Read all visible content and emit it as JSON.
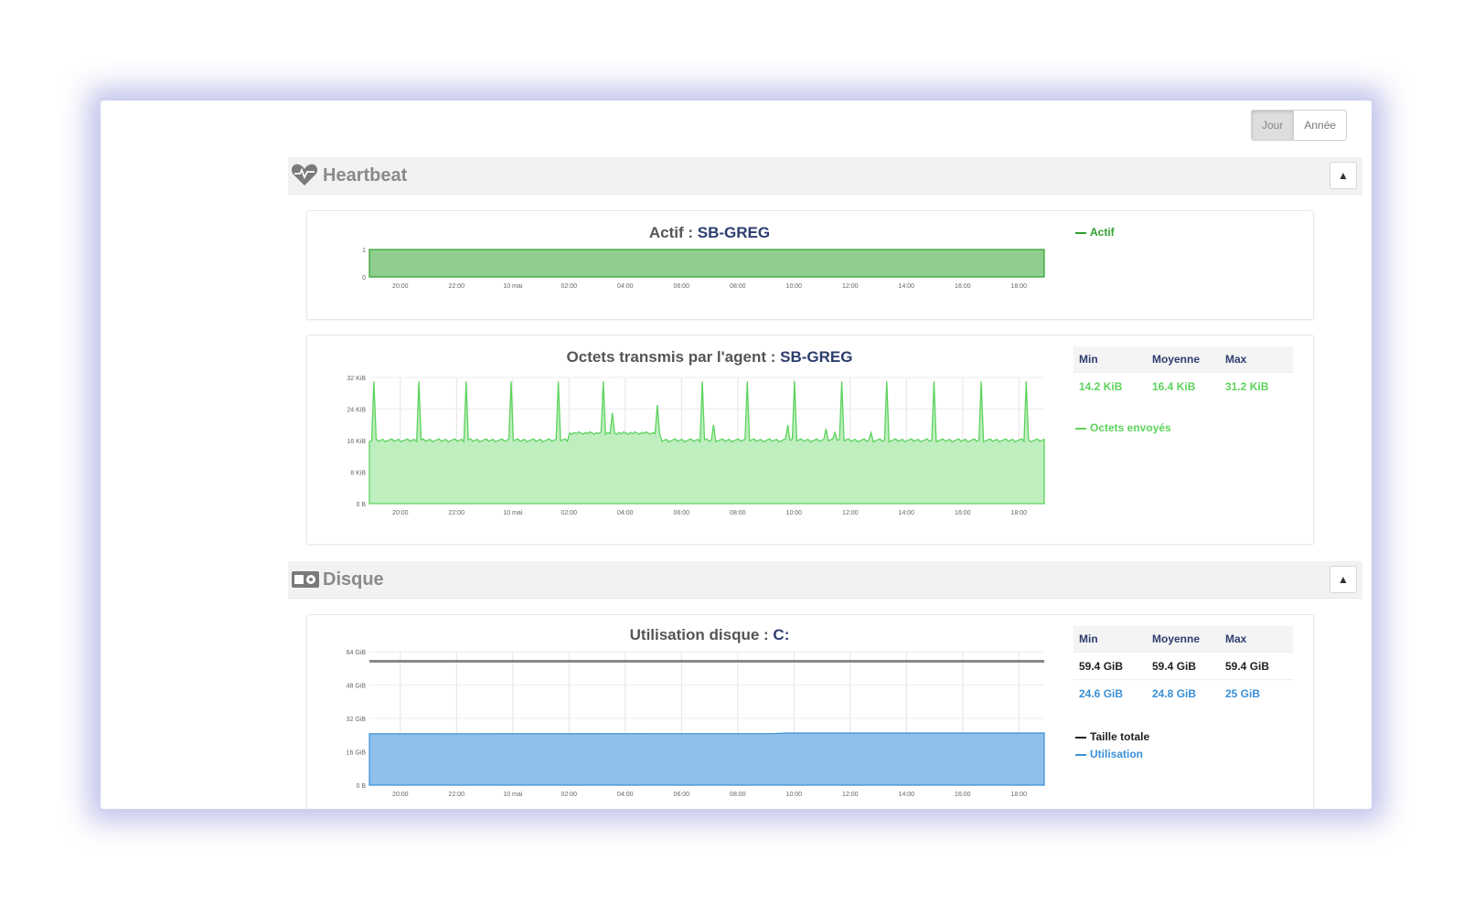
{
  "range_buttons": [
    "Jour",
    "Année"
  ],
  "sections": {
    "heartbeat": {
      "title": "Heartbeat",
      "collapse": "▲"
    },
    "disk": {
      "title": "Disque",
      "collapse": "▲"
    }
  },
  "time_ticks": [
    "20:00",
    "22:00",
    "10 mai",
    "02:00",
    "04:00",
    "06:00",
    "08:00",
    "10:00",
    "12:00",
    "14:00",
    "16:00",
    "18:00"
  ],
  "actif_chart": {
    "title_prefix": "Actif : ",
    "agent": "SB-GREG",
    "y_ticks": [
      "1",
      "0"
    ],
    "legend": "Actif",
    "color": "#2e9e2e",
    "fill": "#8fce8f"
  },
  "octets_chart": {
    "title_prefix": "Octets transmis par l'agent : ",
    "agent": "SB-GREG",
    "y_ticks": [
      "32 KiB",
      "24 KiB",
      "16 KiB",
      "8 KiB",
      "0 B"
    ],
    "headers": [
      "Min",
      "Moyenne",
      "Max"
    ],
    "row": [
      "14.2 KiB",
      "16.4 KiB",
      "31.2 KiB"
    ],
    "legend": "Octets envoyés",
    "color": "#5cd35c",
    "fill": "#bfeebf"
  },
  "disk_chart": {
    "title_prefix": "Utilisation disque : ",
    "drive": "C:",
    "y_ticks": [
      "64 GiB",
      "48 GiB",
      "32 GiB",
      "16 GiB",
      "0 B"
    ],
    "headers": [
      "Min",
      "Moyenne",
      "Max"
    ],
    "rows": [
      [
        "59.4 GiB",
        "59.4 GiB",
        "59.4 GiB"
      ],
      [
        "24.6 GiB",
        "24.8 GiB",
        "25 GiB"
      ]
    ],
    "legend_total": "Taille totale",
    "legend_usage": "Utilisation",
    "total_color": "#222222",
    "usage_color": "#3a8fd6",
    "fill": "#8ec0ea"
  }
}
